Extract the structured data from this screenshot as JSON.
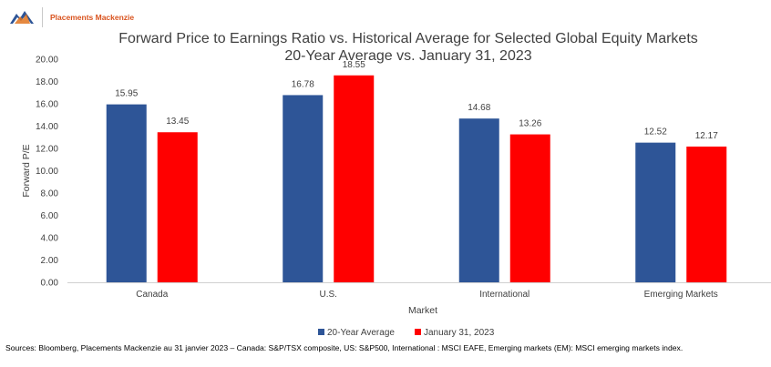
{
  "brand": {
    "name": "Placements Mackenzie",
    "logo_icon": "mountain-logo-icon",
    "colors": {
      "orange": "#e0741f",
      "blue": "#2e5597"
    }
  },
  "chart_data": {
    "type": "bar",
    "title": "Forward Price to Earnings Ratio vs. Historical Average for Selected Global Equity Markets",
    "subtitle": "20-Year Average vs. January 31, 2023",
    "xlabel": "Market",
    "ylabel": "Forward P/E",
    "categories": [
      "Canada",
      "U.S.",
      "International",
      "Emerging Markets"
    ],
    "series": [
      {
        "name": "20-Year Average",
        "color": "#2e5597",
        "values": [
          15.95,
          16.78,
          14.68,
          12.52
        ]
      },
      {
        "name": "January 31, 2023",
        "color": "#ff0000",
        "values": [
          13.45,
          18.55,
          13.26,
          12.17
        ]
      }
    ],
    "ylim": [
      0,
      20
    ],
    "yticks": [
      "0.00",
      "2.00",
      "4.00",
      "6.00",
      "8.00",
      "10.00",
      "12.00",
      "14.00",
      "16.00",
      "18.00",
      "20.00"
    ],
    "grid": false,
    "legend_position": "bottom"
  },
  "footnote": "Sources: Bloomberg, Placements Mackenzie au 31 janvier 2023 – Canada: S&P/TSX composite, US: S&P500, International : MSCI EAFE, Emerging markets (EM): MSCI emerging markets index."
}
